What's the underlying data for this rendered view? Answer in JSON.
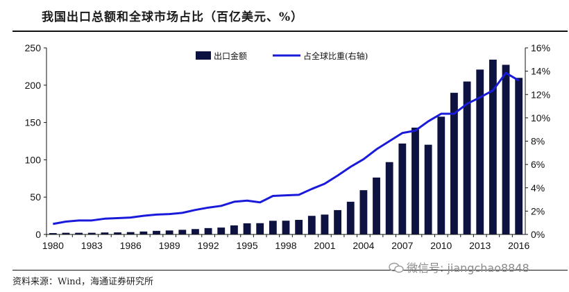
{
  "header": {
    "title": "我国出口总额和全球市场占比（百亿美元、%）"
  },
  "footer": {
    "source": "资料来源：Wind，海通证券研究所",
    "watermark": "微信号: jiangchao8848"
  },
  "colors": {
    "bar": "#0d1240",
    "line": "#1a1adb",
    "axis": "#111111"
  },
  "chart_data": {
    "type": "bar",
    "x": [
      1980,
      1981,
      1982,
      1983,
      1984,
      1985,
      1986,
      1987,
      1988,
      1989,
      1990,
      1991,
      1992,
      1993,
      1994,
      1995,
      1996,
      1997,
      1998,
      1999,
      2000,
      2001,
      2002,
      2003,
      2004,
      2005,
      2006,
      2007,
      2008,
      2009,
      2010,
      2011,
      2012,
      2013,
      2014,
      2015,
      2016
    ],
    "x_tick_labels": [
      "1980",
      "1983",
      "1986",
      "1989",
      "1992",
      "1995",
      "1998",
      "2001",
      "2004",
      "2007",
      "2010",
      "2013",
      "2016"
    ],
    "series": [
      {
        "name": "出口金额",
        "type": "bar",
        "axis": "left",
        "values": [
          1.8,
          2.2,
          2.2,
          2.2,
          2.6,
          2.7,
          3.1,
          3.9,
          4.8,
          5.3,
          6.2,
          7.2,
          8.5,
          9.2,
          12.1,
          14.9,
          15.1,
          18.3,
          18.4,
          19.5,
          24.9,
          26.6,
          32.6,
          43.8,
          59.3,
          76.2,
          96.9,
          121.8,
          143.1,
          120.2,
          157.8,
          189.8,
          204.9,
          220.9,
          234.2,
          227.3,
          209.8
        ]
      },
      {
        "name": "占全球比重(右轴)",
        "type": "line",
        "axis": "right",
        "values": [
          0.9,
          1.1,
          1.2,
          1.2,
          1.35,
          1.4,
          1.45,
          1.6,
          1.7,
          1.75,
          1.85,
          2.1,
          2.3,
          2.45,
          2.8,
          2.9,
          2.75,
          3.3,
          3.35,
          3.4,
          3.9,
          4.35,
          5.05,
          5.8,
          6.45,
          7.3,
          8.0,
          8.7,
          8.9,
          9.7,
          10.35,
          10.35,
          11.2,
          11.75,
          12.35,
          13.85,
          13.2
        ]
      }
    ],
    "y_left": {
      "min": 0,
      "max": 250,
      "ticks": [
        "0",
        "50",
        "100",
        "150",
        "200",
        "250"
      ]
    },
    "y_right": {
      "min": 0,
      "max": 16,
      "ticks": [
        "0%",
        "2%",
        "4%",
        "6%",
        "8%",
        "10%",
        "12%",
        "14%",
        "16%"
      ]
    },
    "legend": {
      "position": "top-center",
      "items": [
        "出口金额",
        "占全球比重(右轴)"
      ]
    }
  }
}
